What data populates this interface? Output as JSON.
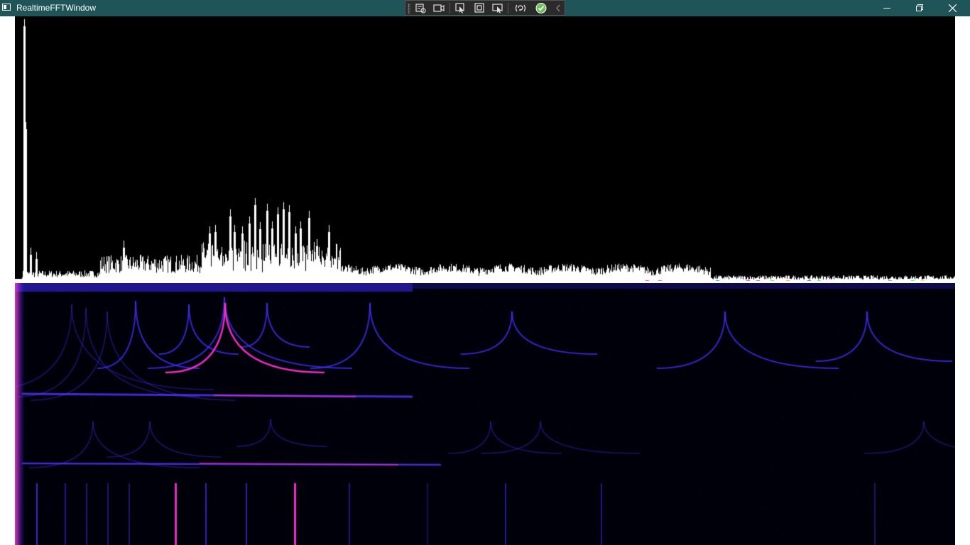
{
  "window": {
    "title": "RealtimeFFTWindow",
    "colors": {
      "titlebar": "#1f5459",
      "background": "#000000",
      "spectrum_fill": "#ffffff",
      "spectrogram_low": "#000010",
      "spectrogram_mid": "#2a1aff",
      "spectrogram_high": "#ff2fd0"
    }
  },
  "debug_toolbar": {
    "icons": [
      "select-element-icon",
      "video-icon",
      "pointer-select-icon",
      "display-layout-icon",
      "track-focus-icon",
      "hot-reload-icon",
      "checkmark-icon",
      "collapse-chevron-icon"
    ]
  },
  "window_controls": {
    "icons": [
      "minimize-icon",
      "restore-icon",
      "close-icon"
    ]
  },
  "visualization": {
    "panels": [
      "fft-spectrum",
      "spectrogram"
    ]
  }
}
